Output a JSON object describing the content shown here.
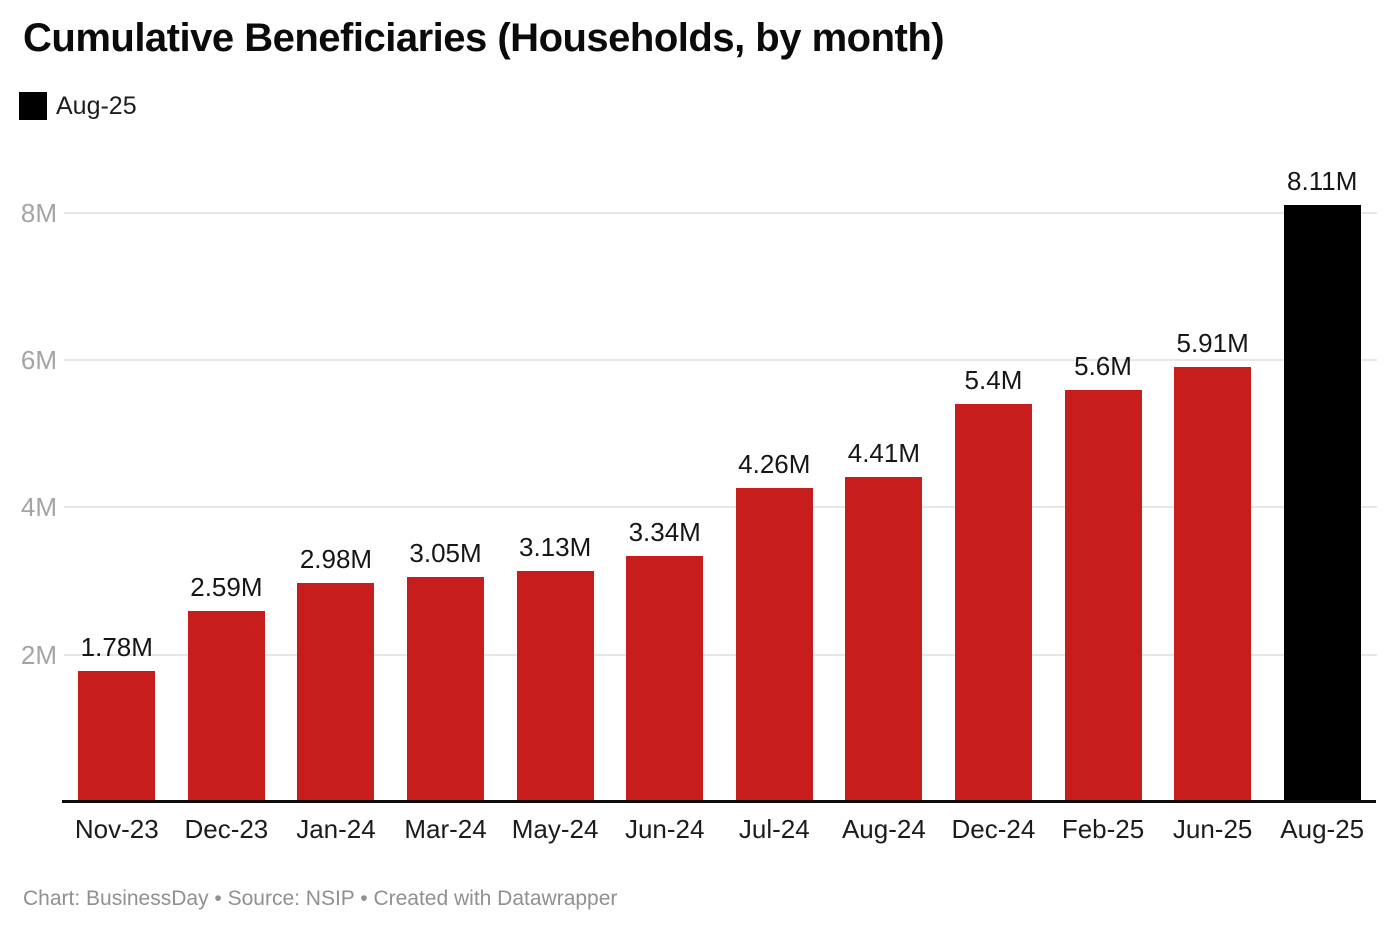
{
  "chart_data": {
    "type": "bar",
    "title": "Cumulative Beneficiaries (Households, by month)",
    "legend": [
      {
        "label": "Aug-25",
        "color": "#000000"
      }
    ],
    "legend_position": "top-left",
    "categories": [
      "Nov-23",
      "Dec-23",
      "Jan-24",
      "Mar-24",
      "May-24",
      "Jun-24",
      "Jul-24",
      "Aug-24",
      "Dec-24",
      "Feb-25",
      "Jun-25",
      "Aug-25"
    ],
    "values": [
      1.78,
      2.59,
      2.98,
      3.05,
      3.13,
      3.34,
      4.26,
      4.41,
      5.4,
      5.6,
      5.91,
      8.11
    ],
    "value_labels": [
      "1.78M",
      "2.59M",
      "2.98M",
      "3.05M",
      "3.13M",
      "3.34M",
      "4.26M",
      "4.41M",
      "5.4M",
      "5.6M",
      "5.91M",
      "8.11M"
    ],
    "unit": "millions of households",
    "xlabel": "",
    "ylabel": "",
    "ylim": [
      0,
      8.8
    ],
    "yticks": [
      {
        "value": 2,
        "label": "2M"
      },
      {
        "value": 4,
        "label": "4M"
      },
      {
        "value": 6,
        "label": "6M"
      },
      {
        "value": 8,
        "label": "8M"
      }
    ],
    "grid": "horizontal",
    "bar_color": "#c71e1d",
    "highlight_category": "Aug-25",
    "highlight_color": "#000000",
    "footer": "Chart: BusinessDay • Source: NSIP • Created with Datawrapper"
  }
}
